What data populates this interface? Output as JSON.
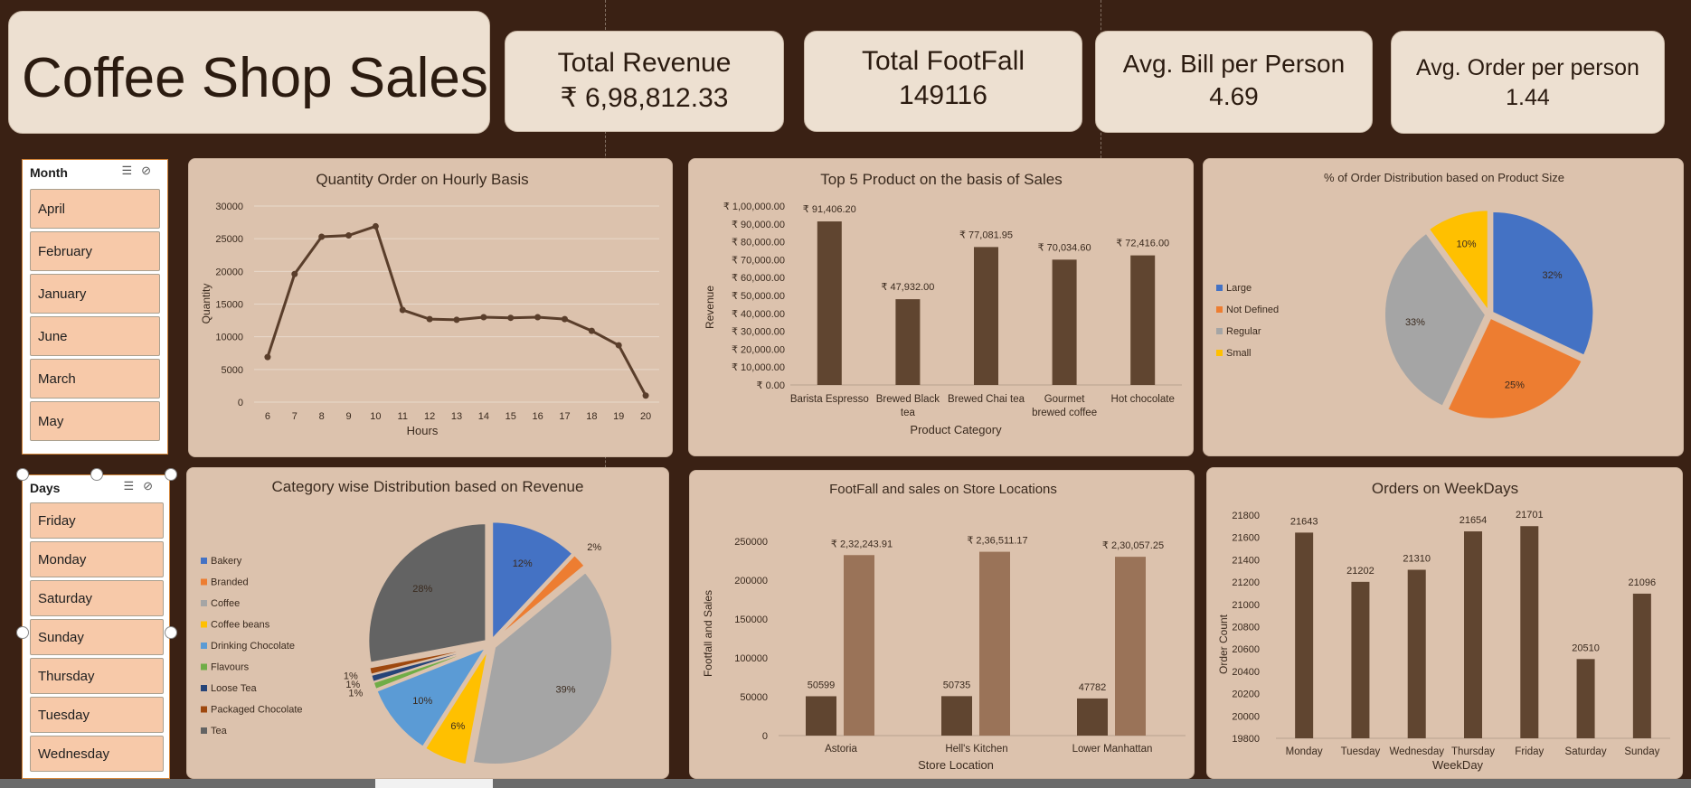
{
  "header": {
    "title": "Coffee Shop Sales"
  },
  "kpis": [
    {
      "label": "Total Revenue",
      "value": "₹ 6,98,812.33"
    },
    {
      "label": "Total FootFall",
      "value": "149116"
    },
    {
      "label": "Avg. Bill per Person",
      "value": "4.69"
    },
    {
      "label": "Avg. Order per person",
      "value": "1.44"
    }
  ],
  "slicers": {
    "month": {
      "title": "Month",
      "items": [
        "April",
        "February",
        "January",
        "June",
        "March",
        "May"
      ]
    },
    "days": {
      "title": "Days",
      "items": [
        "Friday",
        "Monday",
        "Saturday",
        "Sunday",
        "Thursday",
        "Tuesday",
        "Wednesday"
      ]
    }
  },
  "colors": {
    "bar_dark": "#604530",
    "bar_light": "#9a7358",
    "line": "#5a3e2b",
    "panel": "#dcc2ad",
    "large": "#4472c4",
    "not_defined": "#ed7d31",
    "regular": "#a5a5a5",
    "small": "#ffc000"
  },
  "chart_data": [
    {
      "id": "hourly",
      "type": "line",
      "title": "Quantity Order on Hourly Basis",
      "xlabel": "Hours",
      "ylabel": "Quantity",
      "ylim": [
        0,
        30000
      ],
      "yticks": [
        0,
        5000,
        10000,
        15000,
        20000,
        25000,
        30000
      ],
      "grid": true,
      "x": [
        "6",
        "7",
        "8",
        "9",
        "10",
        "11",
        "12",
        "13",
        "14",
        "15",
        "16",
        "17",
        "18",
        "19",
        "20"
      ],
      "values": [
        6900,
        19600,
        25300,
        25500,
        26900,
        14100,
        12700,
        12600,
        13000,
        12900,
        13000,
        12700,
        10900,
        8700,
        1000
      ]
    },
    {
      "id": "top5",
      "type": "bar",
      "title": "Top  5 Product on the basis of Sales",
      "xlabel": "Product Category",
      "ylabel": "Revenue",
      "ylim": [
        0,
        100000
      ],
      "ytick_labels": [
        "₹ 0.00",
        "₹ 10,000.00",
        "₹ 20,000.00",
        "₹ 30,000.00",
        "₹ 40,000.00",
        "₹ 50,000.00",
        "₹ 60,000.00",
        "₹ 70,000.00",
        "₹ 80,000.00",
        "₹ 90,000.00",
        "₹ 1,00,000.00"
      ],
      "categories": [
        [
          "Barista Espresso"
        ],
        [
          "Brewed Black",
          "tea"
        ],
        [
          "Brewed Chai tea"
        ],
        [
          "Gourmet",
          "brewed coffee"
        ],
        [
          "Hot chocolate"
        ]
      ],
      "values": [
        91406.2,
        47932.0,
        77081.95,
        70034.6,
        72416.0
      ],
      "data_labels": [
        "₹ 91,406.20",
        "₹ 47,932.00",
        "₹ 77,081.95",
        "₹ 70,034.60",
        "₹ 72,416.00"
      ]
    },
    {
      "id": "size",
      "type": "pie",
      "title": "% of Order Distribution based on Product  Size",
      "legend": "left",
      "labels": [
        "Large",
        "Not Defined",
        "Regular",
        "Small"
      ],
      "values": [
        32,
        25,
        33,
        10
      ],
      "data_labels": [
        "32%",
        "25%",
        "33%",
        "10%"
      ],
      "colors": [
        "#4472c4",
        "#ed7d31",
        "#a5a5a5",
        "#ffc000"
      ]
    },
    {
      "id": "category",
      "type": "pie",
      "title": "Category wise Distribution based on Revenue",
      "legend": "left",
      "labels": [
        "Bakery",
        "Branded",
        "Coffee",
        "Coffee beans",
        "Drinking Chocolate",
        "Flavours",
        "Loose Tea",
        "Packaged Chocolate",
        "Tea"
      ],
      "values": [
        12,
        2,
        39,
        6,
        10,
        1,
        1,
        1,
        28
      ],
      "data_labels": [
        "12%",
        "2%",
        "39%",
        "6%",
        "10%",
        "1%",
        "1%",
        "1%",
        "28%"
      ],
      "colors": [
        "#4472c4",
        "#ed7d31",
        "#a5a5a5",
        "#ffc000",
        "#5b9bd5",
        "#70ad47",
        "#264478",
        "#9e480e",
        "#636363"
      ]
    },
    {
      "id": "stores",
      "type": "bar",
      "title": "FootFall and sales on Store  Locations",
      "xlabel": "Store Location",
      "ylabel": "Footfall and Sales",
      "ylim": [
        0,
        250000
      ],
      "yticks": [
        0,
        50000,
        100000,
        150000,
        200000,
        250000
      ],
      "categories": [
        "Astoria",
        "Hell's Kitchen",
        "Lower Manhattan"
      ],
      "series": [
        {
          "values": [
            50599,
            50735,
            47782
          ],
          "data_labels": [
            "50599",
            "50735",
            "47782"
          ]
        },
        {
          "values": [
            232243.91,
            236511.17,
            230057.25
          ],
          "data_labels": [
            "₹ 2,32,243.91",
            "₹ 2,36,511.17",
            "₹ 2,30,057.25"
          ]
        }
      ]
    },
    {
      "id": "weekdays",
      "type": "bar",
      "title": "Orders on WeekDays",
      "xlabel": "WeekDay",
      "ylabel": "Order Count",
      "ylim": [
        19800,
        21800
      ],
      "yticks": [
        19800,
        20000,
        20200,
        20400,
        20600,
        20800,
        21000,
        21200,
        21400,
        21600,
        21800
      ],
      "categories": [
        "Monday",
        "Tuesday",
        "Wednesday",
        "Thursday",
        "Friday",
        "Saturday",
        "Sunday"
      ],
      "values": [
        21643,
        21202,
        21310,
        21654,
        21701,
        20510,
        21096
      ],
      "data_labels": [
        "21643",
        "21202",
        "21310",
        "21654",
        "21701",
        "20510",
        "21096"
      ]
    }
  ]
}
